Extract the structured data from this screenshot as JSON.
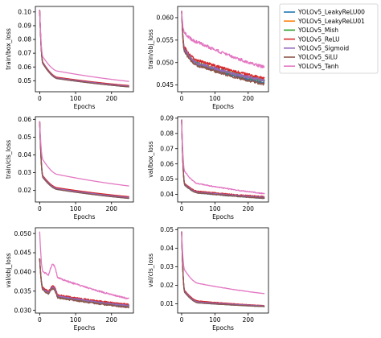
{
  "chart_data": {
    "type": "line",
    "x": {
      "min": 0,
      "max": 249
    },
    "xlabel": "Epochs",
    "xticks": [
      0,
      100,
      200
    ],
    "legend": {
      "placement": "outside-top-right",
      "entries": [
        {
          "name": "YOLOv5_LeakyReLU00",
          "color": "#1f77b4"
        },
        {
          "name": "YOLOv5_LeakyReLU01",
          "color": "#ff7f0e"
        },
        {
          "name": "YOLOv5_Mish",
          "color": "#2ca02c"
        },
        {
          "name": "YOLOv5_ReLU",
          "color": "#d62728"
        },
        {
          "name": "YOLOv5_Sigmoid",
          "color": "#9467bd"
        },
        {
          "name": "YOLOv5_SiLU",
          "color": "#8c564b"
        },
        {
          "name": "YOLOv5_Tanh",
          "color": "#e377c2"
        }
      ]
    },
    "panels": [
      {
        "ylabel": "train/box_loss",
        "ylim": [
          0.042,
          0.104
        ],
        "yticks": [
          0.05,
          0.06,
          0.07,
          0.08,
          0.09,
          0.1
        ],
        "ytick_labels": [
          "0.05",
          "0.06",
          "0.07",
          "0.08",
          "0.09",
          "0.10"
        ],
        "series": [
          {
            "name": "YOLOv5_LeakyReLU00",
            "color": "#1f77b4",
            "start": 0.1015,
            "e10": 0.062,
            "e50": 0.0515,
            "end": 0.0455,
            "k": 0.12,
            "noise": 0
          },
          {
            "name": "YOLOv5_LeakyReLU01",
            "color": "#ff7f0e",
            "start": 0.1015,
            "e10": 0.0625,
            "e50": 0.052,
            "end": 0.046,
            "k": 0.12,
            "noise": 0
          },
          {
            "name": "YOLOv5_Mish",
            "color": "#2ca02c",
            "start": 0.1015,
            "e10": 0.0625,
            "e50": 0.052,
            "end": 0.046,
            "k": 0.12,
            "noise": 0
          },
          {
            "name": "YOLOv5_ReLU",
            "color": "#d62728",
            "start": 0.1015,
            "e10": 0.063,
            "e50": 0.0525,
            "end": 0.0465,
            "k": 0.12,
            "noise": 0
          },
          {
            "name": "YOLOv5_Sigmoid",
            "color": "#9467bd",
            "start": 0.1015,
            "e10": 0.0625,
            "e50": 0.052,
            "end": 0.046,
            "k": 0.12,
            "noise": 0
          },
          {
            "name": "YOLOv5_SiLU",
            "color": "#8c564b",
            "start": 0.1015,
            "e10": 0.062,
            "e50": 0.0515,
            "end": 0.0455,
            "k": 0.12,
            "noise": 0
          },
          {
            "name": "YOLOv5_Tanh",
            "color": "#e377c2",
            "start": 0.1015,
            "e10": 0.067,
            "e50": 0.057,
            "end": 0.0495,
            "k": 0.12,
            "noise": 0
          }
        ]
      },
      {
        "ylabel": "train/obj_loss",
        "ylim": [
          0.0435,
          0.0625
        ],
        "yticks": [
          0.045,
          0.05,
          0.055,
          0.06
        ],
        "ytick_labels": [
          "0.045",
          "0.050",
          "0.055",
          "0.060"
        ],
        "series": [
          {
            "name": "YOLOv5_LeakyReLU00",
            "color": "#1f77b4",
            "start": 0.0615,
            "e10": 0.0525,
            "e50": 0.0495,
            "end": 0.0455,
            "k": 0.15,
            "noise": 0.0003
          },
          {
            "name": "YOLOv5_LeakyReLU01",
            "color": "#ff7f0e",
            "start": 0.0615,
            "e10": 0.0528,
            "e50": 0.0498,
            "end": 0.046,
            "k": 0.15,
            "noise": 0.0003
          },
          {
            "name": "YOLOv5_Mish",
            "color": "#2ca02c",
            "start": 0.0615,
            "e10": 0.0528,
            "e50": 0.0498,
            "end": 0.046,
            "k": 0.15,
            "noise": 0.0003
          },
          {
            "name": "YOLOv5_ReLU",
            "color": "#d62728",
            "start": 0.0615,
            "e10": 0.0532,
            "e50": 0.0505,
            "end": 0.0465,
            "k": 0.15,
            "noise": 0.0003
          },
          {
            "name": "YOLOv5_Sigmoid",
            "color": "#9467bd",
            "start": 0.0615,
            "e10": 0.0528,
            "e50": 0.0498,
            "end": 0.046,
            "k": 0.15,
            "noise": 0.0003
          },
          {
            "name": "YOLOv5_SiLU",
            "color": "#8c564b",
            "start": 0.0615,
            "e10": 0.0522,
            "e50": 0.0493,
            "end": 0.0452,
            "k": 0.15,
            "noise": 0.0003
          },
          {
            "name": "YOLOv5_Tanh",
            "color": "#e377c2",
            "start": 0.0615,
            "e10": 0.0565,
            "e50": 0.0545,
            "end": 0.049,
            "k": 0.15,
            "noise": 0.00035
          }
        ]
      },
      {
        "ylabel": "train/cls_loss",
        "ylim": [
          0.0135,
          0.0615
        ],
        "yticks": [
          0.02,
          0.03,
          0.04,
          0.05,
          0.06
        ],
        "ytick_labels": [
          "0.02",
          "0.03",
          "0.04",
          "0.05",
          "0.06"
        ],
        "series": [
          {
            "name": "YOLOv5_LeakyReLU00",
            "color": "#1f77b4",
            "start": 0.059,
            "e10": 0.027,
            "e50": 0.0205,
            "end": 0.0155,
            "k": 0.14,
            "noise": 0
          },
          {
            "name": "YOLOv5_LeakyReLU01",
            "color": "#ff7f0e",
            "start": 0.059,
            "e10": 0.0275,
            "e50": 0.021,
            "end": 0.016,
            "k": 0.14,
            "noise": 0
          },
          {
            "name": "YOLOv5_Mish",
            "color": "#2ca02c",
            "start": 0.059,
            "e10": 0.0275,
            "e50": 0.021,
            "end": 0.016,
            "k": 0.14,
            "noise": 0
          },
          {
            "name": "YOLOv5_ReLU",
            "color": "#d62728",
            "start": 0.059,
            "e10": 0.028,
            "e50": 0.0215,
            "end": 0.0165,
            "k": 0.14,
            "noise": 0
          },
          {
            "name": "YOLOv5_Sigmoid",
            "color": "#9467bd",
            "start": 0.059,
            "e10": 0.0275,
            "e50": 0.021,
            "end": 0.016,
            "k": 0.14,
            "noise": 0
          },
          {
            "name": "YOLOv5_SiLU",
            "color": "#8c564b",
            "start": 0.059,
            "e10": 0.027,
            "e50": 0.0205,
            "end": 0.0155,
            "k": 0.14,
            "noise": 0
          },
          {
            "name": "YOLOv5_Tanh",
            "color": "#e377c2",
            "start": 0.059,
            "e10": 0.037,
            "e50": 0.029,
            "end": 0.0225,
            "k": 0.14,
            "noise": 0
          }
        ]
      },
      {
        "ylabel": "val/box_loss",
        "ylim": [
          0.035,
          0.091
        ],
        "yticks": [
          0.04,
          0.05,
          0.06,
          0.07,
          0.08,
          0.09
        ],
        "ytick_labels": [
          "0.04",
          "0.05",
          "0.06",
          "0.07",
          "0.08",
          "0.09"
        ],
        "series": [
          {
            "name": "YOLOv5_LeakyReLU00",
            "color": "#1f77b4",
            "start": 0.089,
            "e10": 0.046,
            "e50": 0.041,
            "end": 0.0375,
            "k": 0.3,
            "noise": 0.0003
          },
          {
            "name": "YOLOv5_LeakyReLU01",
            "color": "#ff7f0e",
            "start": 0.089,
            "e10": 0.0465,
            "e50": 0.0415,
            "end": 0.038,
            "k": 0.3,
            "noise": 0.0003
          },
          {
            "name": "YOLOv5_Mish",
            "color": "#2ca02c",
            "start": 0.089,
            "e10": 0.0465,
            "e50": 0.0415,
            "end": 0.038,
            "k": 0.3,
            "noise": 0.0003
          },
          {
            "name": "YOLOv5_ReLU",
            "color": "#d62728",
            "start": 0.089,
            "e10": 0.047,
            "e50": 0.042,
            "end": 0.0385,
            "k": 0.3,
            "noise": 0.0003
          },
          {
            "name": "YOLOv5_Sigmoid",
            "color": "#9467bd",
            "start": 0.089,
            "e10": 0.0465,
            "e50": 0.0415,
            "end": 0.038,
            "k": 0.3,
            "noise": 0.0003
          },
          {
            "name": "YOLOv5_SiLU",
            "color": "#8c564b",
            "start": 0.089,
            "e10": 0.046,
            "e50": 0.041,
            "end": 0.0375,
            "k": 0.3,
            "noise": 0.0003
          },
          {
            "name": "YOLOv5_Tanh",
            "color": "#e377c2",
            "start": 0.089,
            "e10": 0.055,
            "e50": 0.047,
            "end": 0.0405,
            "k": 0.3,
            "noise": 0.0003
          }
        ]
      },
      {
        "ylabel": "val/obj_loss",
        "ylim": [
          0.0293,
          0.0515
        ],
        "yticks": [
          0.03,
          0.035,
          0.04,
          0.045,
          0.05
        ],
        "ytick_labels": [
          "0.030",
          "0.035",
          "0.040",
          "0.045",
          "0.050"
        ],
        "series": [
          {
            "name": "YOLOv5_LeakyReLU00",
            "color": "#1f77b4",
            "start": 0.0435,
            "e10": 0.0355,
            "e50": 0.0335,
            "end": 0.031,
            "k": 0.25,
            "noise": 0.0002,
            "bump": 0.0022
          },
          {
            "name": "YOLOv5_LeakyReLU01",
            "color": "#ff7f0e",
            "start": 0.0435,
            "e10": 0.0355,
            "e50": 0.0337,
            "end": 0.0312,
            "k": 0.25,
            "noise": 0.0002,
            "bump": 0.0022
          },
          {
            "name": "YOLOv5_Mish",
            "color": "#2ca02c",
            "start": 0.0435,
            "e10": 0.0355,
            "e50": 0.0337,
            "end": 0.0312,
            "k": 0.25,
            "noise": 0.0002,
            "bump": 0.0022
          },
          {
            "name": "YOLOv5_ReLU",
            "color": "#d62728",
            "start": 0.0435,
            "e10": 0.0358,
            "e50": 0.034,
            "end": 0.0315,
            "k": 0.25,
            "noise": 0.0002,
            "bump": 0.0022
          },
          {
            "name": "YOLOv5_Sigmoid",
            "color": "#9467bd",
            "start": 0.0435,
            "e10": 0.0355,
            "e50": 0.0337,
            "end": 0.0312,
            "k": 0.25,
            "noise": 0.0002,
            "bump": 0.0022
          },
          {
            "name": "YOLOv5_SiLU",
            "color": "#8c564b",
            "start": 0.0435,
            "e10": 0.0353,
            "e50": 0.0333,
            "end": 0.0308,
            "k": 0.25,
            "noise": 0.0002,
            "bump": 0.0022
          },
          {
            "name": "YOLOv5_Tanh",
            "color": "#e377c2",
            "start": 0.0505,
            "e10": 0.04,
            "e50": 0.0385,
            "end": 0.033,
            "k": 0.25,
            "noise": 0.0002,
            "bump": 0.0035
          }
        ]
      },
      {
        "ylabel": "val/cls_loss",
        "ylim": [
          0.005,
          0.051
        ],
        "yticks": [
          0.01,
          0.02,
          0.03,
          0.04,
          0.05
        ],
        "ytick_labels": [
          "0.01",
          "0.02",
          "0.03",
          "0.04",
          "0.05"
        ],
        "series": [
          {
            "name": "YOLOv5_LeakyReLU00",
            "color": "#1f77b4",
            "start": 0.049,
            "e10": 0.016,
            "e50": 0.0105,
            "end": 0.0085,
            "k": 0.25,
            "noise": 0.0001
          },
          {
            "name": "YOLOv5_LeakyReLU01",
            "color": "#ff7f0e",
            "start": 0.049,
            "e10": 0.0165,
            "e50": 0.011,
            "end": 0.0088,
            "k": 0.25,
            "noise": 0.0001
          },
          {
            "name": "YOLOv5_Mish",
            "color": "#2ca02c",
            "start": 0.049,
            "e10": 0.0165,
            "e50": 0.011,
            "end": 0.0088,
            "k": 0.25,
            "noise": 0.0001
          },
          {
            "name": "YOLOv5_ReLU",
            "color": "#d62728",
            "start": 0.049,
            "e10": 0.017,
            "e50": 0.0115,
            "end": 0.009,
            "k": 0.25,
            "noise": 0.0001
          },
          {
            "name": "YOLOv5_Sigmoid",
            "color": "#9467bd",
            "start": 0.049,
            "e10": 0.0165,
            "e50": 0.011,
            "end": 0.0088,
            "k": 0.25,
            "noise": 0.0001
          },
          {
            "name": "YOLOv5_SiLU",
            "color": "#8c564b",
            "start": 0.049,
            "e10": 0.016,
            "e50": 0.0105,
            "end": 0.0085,
            "k": 0.25,
            "noise": 0.0001
          },
          {
            "name": "YOLOv5_Tanh",
            "color": "#e377c2",
            "start": 0.049,
            "e10": 0.028,
            "e50": 0.021,
            "end": 0.0155,
            "k": 0.25,
            "noise": 0.0001
          }
        ]
      }
    ]
  }
}
